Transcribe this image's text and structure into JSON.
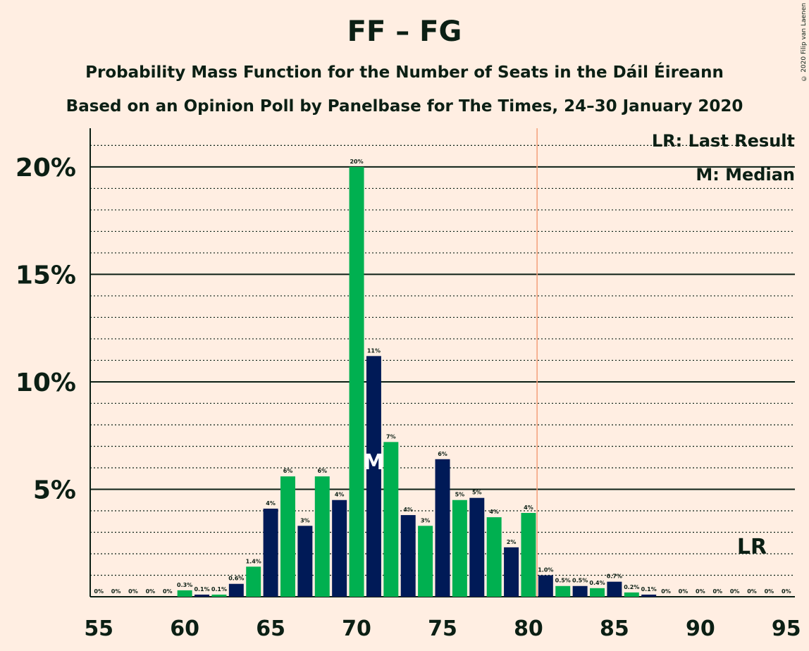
{
  "title": "FF – FG",
  "subtitle": "Probability Mass Function for the Number of Seats in the Dáil Éireann",
  "subtitle2": "Based on an Opinion Poll by Panelbase for The Times, 24–30 January 2020",
  "copyright": "© 2020 Filip van Laenen",
  "legend": {
    "last_result": "LR: Last Result",
    "median": "M: Median"
  },
  "marker_labels": {
    "median": "M",
    "last_result": "LR"
  },
  "colors": {
    "green": "#00B050",
    "navy": "#001A57",
    "background": "#FFEEE2",
    "last_result_line": "#F4A07A",
    "text": "#0B1F14"
  },
  "chart_data": {
    "type": "bar",
    "x": [
      55,
      56,
      57,
      58,
      59,
      60,
      61,
      62,
      63,
      64,
      65,
      66,
      67,
      68,
      69,
      70,
      71,
      72,
      73,
      74,
      75,
      76,
      77,
      78,
      79,
      80,
      81,
      82,
      83,
      84,
      85,
      86,
      87,
      88,
      89,
      90,
      91,
      92,
      93,
      94,
      95
    ],
    "values": [
      0,
      0,
      0,
      0,
      0,
      0.3,
      0.1,
      0.1,
      0.6,
      1.4,
      4.1,
      5.6,
      3.3,
      5.6,
      4.5,
      20.0,
      11.2,
      7.2,
      3.8,
      3.3,
      6.4,
      4.5,
      4.6,
      3.7,
      2.3,
      3.9,
      1.0,
      0.5,
      0.5,
      0.4,
      0.7,
      0.2,
      0.1,
      0,
      0,
      0,
      0,
      0,
      0,
      0,
      0
    ],
    "data_labels": [
      "0%",
      "0%",
      "0%",
      "0%",
      "0%",
      "0.3%",
      "0.1%",
      "0.1%",
      "0.6%",
      "1.4%",
      "4%",
      "6%",
      "3%",
      "6%",
      "4%",
      "20%",
      "11%",
      "7%",
      "4%",
      "3%",
      "6%",
      "5%",
      "5%",
      "4%",
      "2%",
      "4%",
      "1.0%",
      "0.5%",
      "0.5%",
      "0.4%",
      "0.7%",
      "0.2%",
      "0.1%",
      "0%",
      "0%",
      "0%",
      "0%",
      "0%",
      "0%",
      "0%",
      "0%"
    ],
    "x_ticks": [
      55,
      60,
      65,
      70,
      75,
      80,
      85,
      90,
      95
    ],
    "x_tick_labels": [
      "55",
      "60",
      "65",
      "70",
      "75",
      "80",
      "85",
      "90",
      "95"
    ],
    "y_ticks": [
      5,
      10,
      15,
      20
    ],
    "y_tick_labels": [
      "5%",
      "10%",
      "15%",
      "20%"
    ],
    "ylim": [
      0,
      21.8
    ],
    "xlim": [
      54.5,
      95.5
    ],
    "median": 71,
    "last_result": 93,
    "majority_line": 80.5,
    "grid": true
  }
}
